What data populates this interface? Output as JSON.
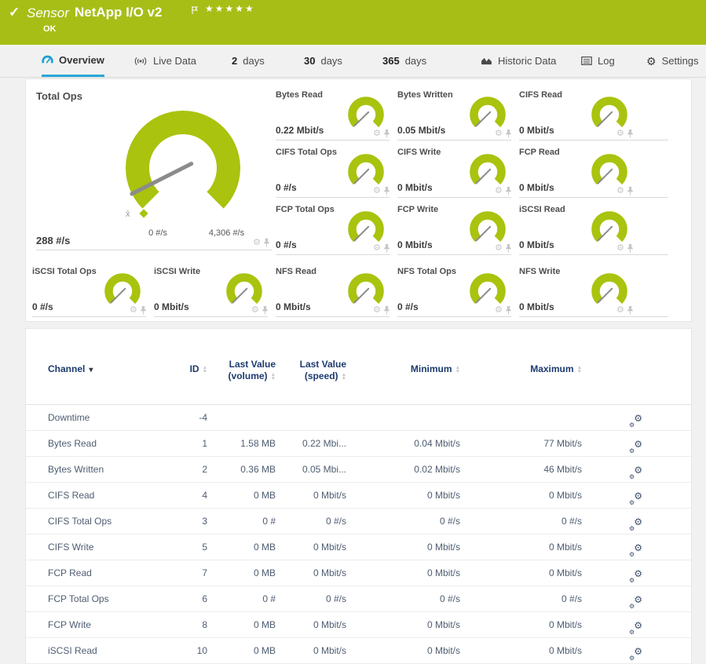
{
  "header": {
    "check_icon": "✓",
    "sensor_label": "Sensor",
    "sensor_name": "NetApp I/O v2",
    "flag_icon": "flag",
    "stars": "★★★★★",
    "status": "OK"
  },
  "tabs": [
    {
      "id": "overview",
      "icon": "gauge-icon",
      "label": "Overview",
      "active": true
    },
    {
      "id": "live-data",
      "icon": "live-icon",
      "label": "Live Data"
    },
    {
      "id": "2-days",
      "number": "2",
      "label": "days"
    },
    {
      "id": "30-days",
      "number": "30",
      "label": "days"
    },
    {
      "id": "365-days",
      "number": "365",
      "label": "days"
    },
    {
      "id": "historic-data",
      "icon": "chart-icon",
      "label": "Historic Data"
    },
    {
      "id": "log",
      "icon": "log-icon",
      "label": "Log"
    },
    {
      "id": "settings",
      "icon": "gear-icon",
      "label": "Settings"
    }
  ],
  "main_gauge": {
    "title": "Total Ops",
    "value": "288 #/s",
    "min_label": "0 #/s",
    "max_label": "4,306 #/s",
    "percent": 6.7,
    "avg_marker": "x̄"
  },
  "tiles": [
    {
      "title": "Bytes Read",
      "value": "0.22 Mbit/s",
      "percent": 0.3
    },
    {
      "title": "Bytes Written",
      "value": "0.05 Mbit/s",
      "percent": 0.1
    },
    {
      "title": "CIFS Read",
      "value": "0 Mbit/s",
      "percent": 0
    },
    {
      "title": "CIFS Total Ops",
      "value": "0 #/s",
      "percent": 0
    },
    {
      "title": "CIFS Write",
      "value": "0 Mbit/s",
      "percent": 0
    },
    {
      "title": "FCP Read",
      "value": "0 Mbit/s",
      "percent": 0
    },
    {
      "title": "FCP Total Ops",
      "value": "0 #/s",
      "percent": 0
    },
    {
      "title": "FCP Write",
      "value": "0 Mbit/s",
      "percent": 0
    },
    {
      "title": "iSCSI Read",
      "value": "0 Mbit/s",
      "percent": 0
    },
    {
      "title": "iSCSI Total Ops",
      "value": "0 #/s",
      "percent": 0
    },
    {
      "title": "iSCSI Write",
      "value": "0 Mbit/s",
      "percent": 0
    },
    {
      "title": "NFS Read",
      "value": "0 Mbit/s",
      "percent": 0
    },
    {
      "title": "NFS Total Ops",
      "value": "0 #/s",
      "percent": 0
    },
    {
      "title": "NFS Write",
      "value": "0 Mbit/s",
      "percent": 0
    }
  ],
  "table": {
    "columns": {
      "channel": "Channel",
      "id": "ID",
      "last_volume_line1": "Last Value",
      "last_volume_line2": "(volume)",
      "last_speed_line1": "Last Value",
      "last_speed_line2": "(speed)",
      "minimum": "Minimum",
      "maximum": "Maximum"
    },
    "rows": [
      [
        "Downtime",
        "-4",
        "",
        "",
        "",
        ""
      ],
      [
        "Bytes Read",
        "1",
        "1.58 MB",
        "0.22 Mbi...",
        "0.04 Mbit/s",
        "77 Mbit/s"
      ],
      [
        "Bytes Written",
        "2",
        "0.36 MB",
        "0.05 Mbi...",
        "0.02 Mbit/s",
        "46 Mbit/s"
      ],
      [
        "CIFS Read",
        "4",
        "0 MB",
        "0 Mbit/s",
        "0 Mbit/s",
        "0 Mbit/s"
      ],
      [
        "CIFS Total Ops",
        "3",
        "0 #",
        "0 #/s",
        "0 #/s",
        "0 #/s"
      ],
      [
        "CIFS Write",
        "5",
        "0 MB",
        "0 Mbit/s",
        "0 Mbit/s",
        "0 Mbit/s"
      ],
      [
        "FCP Read",
        "7",
        "0 MB",
        "0 Mbit/s",
        "0 Mbit/s",
        "0 Mbit/s"
      ],
      [
        "FCP Total Ops",
        "6",
        "0 #",
        "0 #/s",
        "0 #/s",
        "0 #/s"
      ],
      [
        "FCP Write",
        "8",
        "0 MB",
        "0 Mbit/s",
        "0 Mbit/s",
        "0 Mbit/s"
      ],
      [
        "iSCSI Read",
        "10",
        "0 MB",
        "0 Mbit/s",
        "0 Mbit/s",
        "0 Mbit/s"
      ]
    ]
  },
  "colors": {
    "header_green": "#a7be17",
    "gauge_green": "#a9c30e",
    "accent_blue": "#2aa7d8",
    "needle_gray": "#8b8b8b",
    "table_header_blue": "#1c3a6e"
  }
}
